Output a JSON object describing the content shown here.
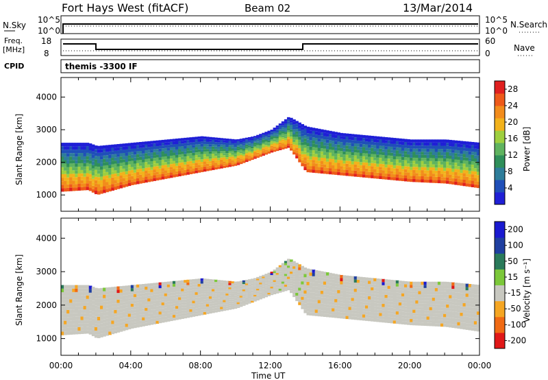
{
  "header": {
    "station": "Fort Hays West (fitACF)",
    "beam": "Beam 02",
    "date": "13/Mar/2014"
  },
  "top_panels": {
    "nsky_label": "N.Sky",
    "nsky_ticks_left": [
      "10^5",
      "10^0"
    ],
    "nsky_ticks_right": [
      "10^5",
      "10^0"
    ],
    "nsearch_label": "N.Search",
    "freq_label_line1": "Freq.",
    "freq_label_line2": "[MHz]",
    "freq_ticks_left": [
      "18",
      "8"
    ],
    "nave_label": "Nave",
    "nave_ticks_right": [
      "60",
      "0"
    ],
    "cpid_label": "CPID",
    "cpid_text": "themis -3300 IF"
  },
  "colors": {
    "power": [
      "#1f1fd6",
      "#1f4fb8",
      "#2e7d9a",
      "#2f8f5a",
      "#5fb35f",
      "#9ecf3f",
      "#f2b21c",
      "#f28c1c",
      "#ee5a1a",
      "#e02020"
    ],
    "velocity": [
      "#e01818",
      "#f06a14",
      "#f5a623",
      "#c8c8c0",
      "#7cc83a",
      "#2a7a5a",
      "#1f3fa0",
      "#1a1ad0"
    ]
  },
  "chart_data": [
    {
      "type": "heatmap",
      "title": "",
      "parameter": "Power",
      "xlabel": "",
      "ylabel": "Slant Range [km]",
      "x_range_hours": [
        0,
        24
      ],
      "ylim": [
        500,
        4600
      ],
      "yticks": [
        1000,
        2000,
        3000,
        4000
      ],
      "colorbar_label": "Power [dB]",
      "colorbar_ticks": [
        4,
        8,
        12,
        16,
        20,
        24,
        28
      ],
      "colorbar_range": [
        0,
        30
      ],
      "echo_band": {
        "time_hours": [
          0,
          1.5,
          2,
          4,
          6,
          8,
          10,
          11,
          12,
          13,
          14,
          16,
          18,
          20,
          22,
          24
        ],
        "range_bottom_km": [
          1100,
          1150,
          1000,
          1300,
          1500,
          1700,
          1900,
          2100,
          2300,
          2450,
          1700,
          1600,
          1500,
          1400,
          1350,
          1200
        ],
        "range_top_km": [
          2600,
          2600,
          2500,
          2600,
          2700,
          2800,
          2700,
          2800,
          3000,
          3400,
          3100,
          2900,
          2800,
          2700,
          2700,
          2600
        ]
      }
    },
    {
      "type": "heatmap",
      "title": "",
      "parameter": "Velocity",
      "xlabel": "Time UT",
      "ylabel": "Slant Range [km]",
      "x_range_hours": [
        0,
        24
      ],
      "x_tick_labels": [
        "00:00",
        "04:00",
        "08:00",
        "12:00",
        "16:00",
        "20:00",
        "00:00"
      ],
      "ylim": [
        500,
        4600
      ],
      "yticks": [
        1000,
        2000,
        3000,
        4000
      ],
      "colorbar_label": "Velocity [m s⁻¹]",
      "colorbar_ticks": [
        200,
        100,
        50,
        15,
        -15,
        -50,
        -100,
        -200
      ],
      "colorbar_range": [
        -250,
        250
      ]
    }
  ]
}
